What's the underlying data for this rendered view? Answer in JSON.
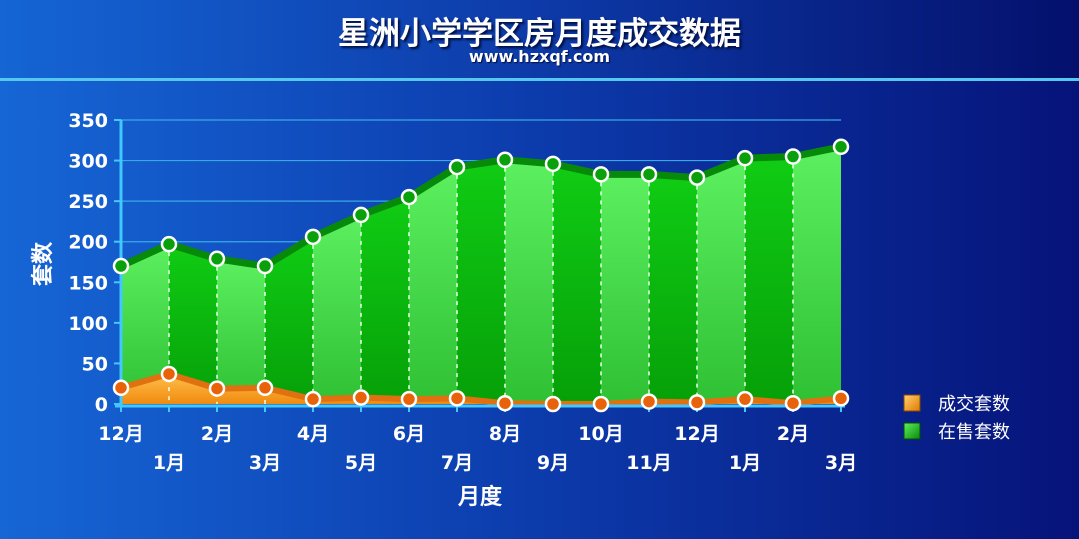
{
  "chart_data": {
    "type": "area",
    "title": "星洲小学学区房月度成交数据",
    "subtitle": "www.hzxqf.com",
    "xlabel": "月度",
    "ylabel": "套数",
    "ylim": [
      0,
      350
    ],
    "yticks": [
      0,
      50,
      100,
      150,
      200,
      250,
      300,
      350
    ],
    "categories": [
      "12月",
      "1月",
      "2月",
      "3月",
      "4月",
      "5月",
      "6月",
      "7月",
      "8月",
      "9月",
      "10月",
      "11月",
      "12月",
      "1月",
      "2月",
      "3月"
    ],
    "series": [
      {
        "name": "成交套数",
        "values": [
          20,
          37,
          19,
          20,
          6,
          8,
          6,
          7,
          1,
          0,
          0,
          3,
          2,
          6,
          1,
          7
        ]
      },
      {
        "name": "在售套数",
        "values": [
          170,
          197,
          179,
          170,
          206,
          233,
          255,
          292,
          301,
          296,
          283,
          283,
          279,
          303,
          305,
          317
        ]
      }
    ],
    "legend_position": "right",
    "grid": true,
    "colors": {
      "deal_fill": "#f5a623",
      "deal_line": "#e07010",
      "sale_fill_light": "#46dd4c",
      "sale_fill_dark": "#0bb00e",
      "sale_line": "#078a0a",
      "grid": "#3aa8e8"
    }
  }
}
